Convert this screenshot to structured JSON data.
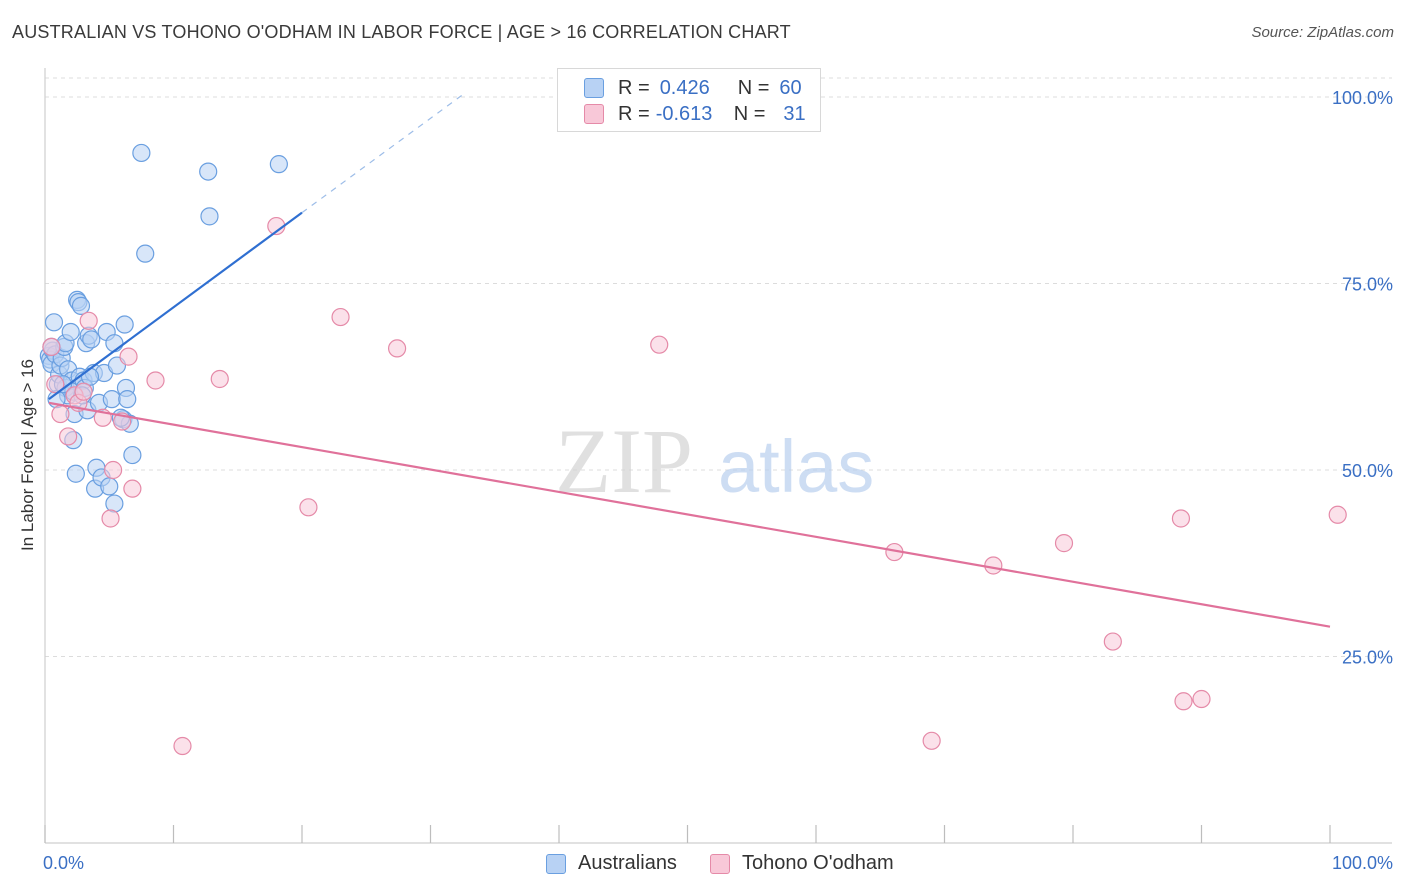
{
  "title": "AUSTRALIAN VS TOHONO O'ODHAM IN LABOR FORCE | AGE > 16 CORRELATION CHART",
  "source": "Source: ZipAtlas.com",
  "watermark": {
    "zip": "ZIP",
    "atlas": "atlas"
  },
  "legend": {
    "r_label": "R =",
    "n_label": "N =",
    "rows": [
      {
        "r": "0.426",
        "n": "60",
        "color": "#6a9fe0",
        "fill": "#b8d2f4"
      },
      {
        "r": "-0.613",
        "n": "31",
        "color": "#e58aa8",
        "fill": "#f8c8d8"
      }
    ]
  },
  "bottom_legend": {
    "a": "Australians",
    "b": "Tohono O'odham"
  },
  "colors": {
    "blue": "#6a9fe0",
    "blue_line": "#2f6fd1",
    "pink": "#e58aa8",
    "pink_line": "#e0719a",
    "tick_label": "#3a6fc4"
  },
  "chart_data": {
    "type": "scatter",
    "title": "AUSTRALIAN VS TOHONO O'ODHAM IN LABOR FORCE | AGE > 16 CORRELATION CHART",
    "xlabel": "",
    "ylabel": "In Labor Force | Age > 16",
    "xlim": [
      0,
      100
    ],
    "ylim": [
      0,
      102
    ],
    "x_tick_labels": [
      "0.0%",
      "100.0%"
    ],
    "y_ticks": [
      25,
      50,
      75,
      100
    ],
    "y_tick_labels": [
      "25.0%",
      "50.0%",
      "75.0%",
      "100.0%"
    ],
    "series": [
      {
        "name": "Australians",
        "r": 0.426,
        "n": 60,
        "trend": {
          "x0": 0.3,
          "y0": 59.5,
          "x1": 20,
          "y1": 84.5,
          "dash_to_x": 32.5,
          "dash_to_y": 100.3
        },
        "points": [
          [
            0.3,
            65.3
          ],
          [
            0.4,
            64.8
          ],
          [
            0.6,
            66.0
          ],
          [
            0.5,
            64.2
          ],
          [
            0.8,
            65.5
          ],
          [
            0.7,
            69.8
          ],
          [
            1.0,
            61.5
          ],
          [
            1.1,
            62.8
          ],
          [
            1.2,
            64.0
          ],
          [
            1.3,
            65.0
          ],
          [
            1.5,
            66.5
          ],
          [
            1.6,
            67.0
          ],
          [
            1.6,
            61.0
          ],
          [
            1.8,
            63.5
          ],
          [
            1.8,
            60.0
          ],
          [
            2.0,
            68.5
          ],
          [
            2.1,
            62.0
          ],
          [
            2.2,
            60.5
          ],
          [
            2.3,
            57.5
          ],
          [
            2.4,
            49.5
          ],
          [
            2.5,
            72.8
          ],
          [
            2.6,
            72.5
          ],
          [
            2.7,
            62.5
          ],
          [
            2.8,
            72.0
          ],
          [
            3.0,
            62.0
          ],
          [
            3.1,
            61.0
          ],
          [
            3.2,
            67.0
          ],
          [
            3.3,
            58.0
          ],
          [
            3.4,
            68.0
          ],
          [
            3.6,
            67.5
          ],
          [
            3.8,
            63.0
          ],
          [
            3.9,
            47.5
          ],
          [
            4.0,
            50.3
          ],
          [
            4.2,
            59.0
          ],
          [
            4.4,
            49.0
          ],
          [
            4.6,
            63.0
          ],
          [
            4.8,
            68.5
          ],
          [
            5.0,
            47.8
          ],
          [
            5.2,
            59.5
          ],
          [
            5.4,
            45.5
          ],
          [
            5.4,
            67.0
          ],
          [
            5.6,
            64.0
          ],
          [
            6.1,
            56.8
          ],
          [
            6.2,
            69.5
          ],
          [
            6.3,
            61.0
          ],
          [
            6.4,
            59.5
          ],
          [
            6.6,
            56.2
          ],
          [
            6.8,
            52.0
          ],
          [
            7.5,
            92.5
          ],
          [
            7.8,
            79.0
          ],
          [
            12.7,
            90.0
          ],
          [
            12.8,
            84.0
          ],
          [
            18.2,
            91.0
          ],
          [
            0.9,
            59.5
          ],
          [
            2.2,
            54.0
          ],
          [
            1.4,
            61.5
          ],
          [
            0.5,
            66.5
          ],
          [
            3.5,
            62.5
          ],
          [
            5.9,
            57.0
          ],
          [
            2.9,
            60.0
          ]
        ]
      },
      {
        "name": "Tohono O'odham",
        "r": -0.613,
        "n": 31,
        "trend": {
          "x0": 0.3,
          "y0": 59.0,
          "x1": 100,
          "y1": 29.0
        },
        "points": [
          [
            0.5,
            66.5
          ],
          [
            0.8,
            61.5
          ],
          [
            1.2,
            57.5
          ],
          [
            1.8,
            54.5
          ],
          [
            2.3,
            60.0
          ],
          [
            2.6,
            59.0
          ],
          [
            3.4,
            70.0
          ],
          [
            4.5,
            57.0
          ],
          [
            5.1,
            43.5
          ],
          [
            5.3,
            50.0
          ],
          [
            6.0,
            56.5
          ],
          [
            6.5,
            65.2
          ],
          [
            6.8,
            47.5
          ],
          [
            8.6,
            62.0
          ],
          [
            10.7,
            13.0
          ],
          [
            13.6,
            62.2
          ],
          [
            18.0,
            82.7
          ],
          [
            20.5,
            45.0
          ],
          [
            23.0,
            70.5
          ],
          [
            27.4,
            66.3
          ],
          [
            47.8,
            66.8
          ],
          [
            66.1,
            39.0
          ],
          [
            69.0,
            13.7
          ],
          [
            73.8,
            37.2
          ],
          [
            79.3,
            40.2
          ],
          [
            83.1,
            27.0
          ],
          [
            88.4,
            43.5
          ],
          [
            88.6,
            19.0
          ],
          [
            90.0,
            19.3
          ],
          [
            100.6,
            44.0
          ],
          [
            3.0,
            60.5
          ]
        ]
      }
    ]
  }
}
